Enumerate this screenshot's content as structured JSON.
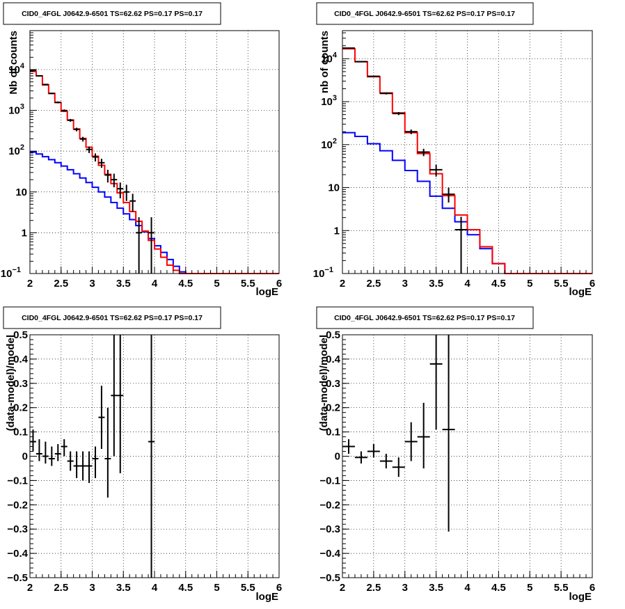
{
  "colors": {
    "data": "#000000",
    "total_model": "#ff0000",
    "source_model": "#0000ff",
    "grid": "#000000",
    "background": "#ffffff"
  },
  "chart_data": [
    {
      "type": "line",
      "title": "CID0_4FGL J0642.9-6501 TS=62.62 PS=0.17 PS=0.17",
      "xlabel": "logE",
      "ylabel": "Nb of counts",
      "log_y": true,
      "grid": true,
      "xlim": [
        2,
        6
      ],
      "ylim": [
        0.1,
        90000
      ],
      "xticks": [
        "2",
        "2.5",
        "3",
        "3.5",
        "4",
        "4.5",
        "5",
        "5.5",
        "6"
      ],
      "yticks": [
        {
          "v": 0.1,
          "label": "10",
          "exp": "−1"
        },
        {
          "v": 1,
          "label": "1",
          "exp": ""
        },
        {
          "v": 10,
          "label": "10",
          "exp": ""
        },
        {
          "v": 100,
          "label": "10",
          "exp": "2"
        },
        {
          "v": 1000,
          "label": "10",
          "exp": "3"
        },
        {
          "v": 10000,
          "label": "10",
          "exp": "4"
        }
      ],
      "bin_edges": [
        2.0,
        2.1,
        2.2,
        2.3,
        2.4,
        2.5,
        2.6,
        2.7,
        2.8,
        2.9,
        3.0,
        3.1,
        3.2,
        3.3,
        3.4,
        3.5,
        3.6,
        3.7,
        3.8,
        3.9,
        4.0,
        4.1,
        4.2,
        4.3,
        4.4,
        4.5,
        4.6,
        4.7,
        4.8,
        4.9,
        5.0,
        5.1,
        5.2,
        5.3,
        5.4,
        5.5,
        5.6,
        5.7,
        5.8,
        5.9,
        6.0
      ],
      "series": [
        {
          "role": "total_model",
          "style": "step",
          "values": [
            9000,
            7000,
            4200,
            2600,
            1550,
            950,
            580,
            350,
            205,
            125,
            75,
            45,
            27,
            16,
            9.5,
            5.5,
            3.3,
            1.9,
            1.1,
            0.65,
            0.4,
            0.25,
            0.16,
            0.12,
            0.1,
            0.1,
            0.1,
            0.1,
            0.1,
            0.1,
            0.1,
            0.1,
            0.1,
            0.1,
            0.1,
            0.1,
            0.1,
            0.1,
            0.1,
            0.1
          ]
        },
        {
          "role": "source_model",
          "style": "step",
          "values": [
            95,
            85,
            73,
            62,
            52,
            43,
            35,
            28,
            22,
            17,
            13,
            10,
            7.5,
            5.5,
            4,
            2.9,
            2.1,
            1.5,
            1.05,
            0.72,
            0.48,
            0.33,
            0.22,
            0.15,
            0.11,
            0.1,
            0.1,
            0.1,
            0.1,
            0.1,
            0.1,
            0.1,
            0.1,
            0.1,
            0.1,
            0.1,
            0.1,
            0.1,
            0.1,
            0.1
          ]
        },
        {
          "role": "data",
          "style": "errorbar",
          "points": [
            {
              "x": 2.05,
              "y": 9500,
              "ylo": 9300,
              "yhi": 9700
            },
            {
              "x": 2.15,
              "y": 7000,
              "ylo": 6830,
              "yhi": 7170
            },
            {
              "x": 2.25,
              "y": 4300,
              "ylo": 4170,
              "yhi": 4430
            },
            {
              "x": 2.35,
              "y": 2600,
              "ylo": 2500,
              "yhi": 2700
            },
            {
              "x": 2.45,
              "y": 1570,
              "ylo": 1490,
              "yhi": 1650
            },
            {
              "x": 2.55,
              "y": 990,
              "ylo": 930,
              "yhi": 1050
            },
            {
              "x": 2.65,
              "y": 570,
              "ylo": 525,
              "yhi": 615
            },
            {
              "x": 2.75,
              "y": 340,
              "ylo": 305,
              "yhi": 375
            },
            {
              "x": 2.85,
              "y": 198,
              "ylo": 172,
              "yhi": 224
            },
            {
              "x": 2.95,
              "y": 110,
              "ylo": 90,
              "yhi": 130
            },
            {
              "x": 3.05,
              "y": 72,
              "ylo": 56,
              "yhi": 88
            },
            {
              "x": 3.15,
              "y": 52,
              "ylo": 39,
              "yhi": 65
            },
            {
              "x": 3.25,
              "y": 26,
              "ylo": 17,
              "yhi": 35
            },
            {
              "x": 3.35,
              "y": 20,
              "ylo": 13,
              "yhi": 28
            },
            {
              "x": 3.45,
              "y": 12,
              "ylo": 7,
              "yhi": 17
            },
            {
              "x": 3.55,
              "y": 10,
              "ylo": 6,
              "yhi": 15
            },
            {
              "x": 3.65,
              "y": 6,
              "ylo": 3.3,
              "yhi": 9
            },
            {
              "x": 3.75,
              "y": 1,
              "ylo": 0.1,
              "yhi": 2.4
            },
            {
              "x": 3.95,
              "y": 1,
              "ylo": 0.1,
              "yhi": 2.4
            }
          ]
        }
      ]
    },
    {
      "type": "line",
      "title": "CID0_4FGL J0642.9-6501 TS=62.62 PS=0.17 PS=0.17",
      "xlabel": "logE",
      "ylabel": "nb of counts",
      "log_y": true,
      "grid": true,
      "xlim": [
        2,
        6
      ],
      "ylim": [
        0.1,
        45000
      ],
      "xticks": [
        "2",
        "2.5",
        "3",
        "3.5",
        "4",
        "4.5",
        "5",
        "5.5",
        "6"
      ],
      "yticks": [
        {
          "v": 0.1,
          "label": "10",
          "exp": "−1"
        },
        {
          "v": 1,
          "label": "1",
          "exp": ""
        },
        {
          "v": 10,
          "label": "10",
          "exp": ""
        },
        {
          "v": 100,
          "label": "10",
          "exp": "2"
        },
        {
          "v": 1000,
          "label": "10",
          "exp": "3"
        },
        {
          "v": 10000,
          "label": "10",
          "exp": "4"
        }
      ],
      "bin_edges": [
        2.0,
        2.2,
        2.4,
        2.6,
        2.8,
        3.0,
        3.2,
        3.4,
        3.6,
        3.8,
        4.0,
        4.2,
        4.4,
        4.6,
        4.8,
        5.0,
        5.2,
        5.4,
        5.6,
        5.8,
        6.0
      ],
      "series": [
        {
          "role": "total_model",
          "style": "step",
          "values": [
            17000,
            8500,
            3800,
            1600,
            550,
            190,
            62,
            21,
            6.5,
            2.3,
            1.05,
            0.42,
            0.17,
            0.1,
            0.1,
            0.1,
            0.1,
            0.1,
            0.1,
            0.1
          ]
        },
        {
          "role": "source_model",
          "style": "step",
          "values": [
            190,
            155,
            105,
            72,
            43,
            25,
            14,
            6.3,
            3.3,
            1.6,
            0.8,
            0.38,
            0.17,
            0.1,
            0.1,
            0.1,
            0.1,
            0.1,
            0.1,
            0.1
          ]
        },
        {
          "role": "data",
          "style": "errorbar",
          "points": [
            {
              "x": 2.1,
              "y": 17600,
              "ylo": 17300,
              "yhi": 17900
            },
            {
              "x": 2.3,
              "y": 8500,
              "ylo": 8320,
              "yhi": 8680
            },
            {
              "x": 2.5,
              "y": 3900,
              "ylo": 3780,
              "yhi": 4020
            },
            {
              "x": 2.7,
              "y": 1550,
              "ylo": 1470,
              "yhi": 1630
            },
            {
              "x": 2.9,
              "y": 530,
              "ylo": 487,
              "yhi": 573
            },
            {
              "x": 3.1,
              "y": 200,
              "ylo": 175,
              "yhi": 225
            },
            {
              "x": 3.3,
              "y": 67,
              "ylo": 54,
              "yhi": 80
            },
            {
              "x": 3.5,
              "y": 26,
              "ylo": 18,
              "yhi": 34
            },
            {
              "x": 3.7,
              "y": 7,
              "ylo": 4.5,
              "yhi": 10
            },
            {
              "x": 3.9,
              "y": 1.05,
              "ylo": 0.1,
              "yhi": 2.1
            }
          ]
        }
      ]
    },
    {
      "type": "scatter",
      "title": "CID0_4FGL J0642.9-6501 TS=62.62 PS=0.17 PS=0.17",
      "xlabel": "logE",
      "ylabel": "(data-model)/model",
      "grid": true,
      "xlim": [
        2,
        6
      ],
      "ylim": [
        -0.5,
        0.5
      ],
      "xticks": [
        "2",
        "2.5",
        "3",
        "3.5",
        "4",
        "4.5",
        "5",
        "5.5",
        "6"
      ],
      "yticks": [
        "−0.5",
        "−0.4",
        "−0.3",
        "−0.2",
        "−0.1",
        "0",
        "0.1",
        "0.2",
        "0.3",
        "0.4",
        "0.5"
      ],
      "xerr": 0.05,
      "points": [
        {
          "x": 2.05,
          "y": 0.06,
          "ylo": 0.02,
          "yhi": 0.11
        },
        {
          "x": 2.15,
          "y": 0.01,
          "ylo": -0.02,
          "yhi": 0.07
        },
        {
          "x": 2.25,
          "y": 0.0,
          "ylo": -0.03,
          "yhi": 0.06
        },
        {
          "x": 2.35,
          "y": -0.01,
          "ylo": -0.04,
          "yhi": 0.04
        },
        {
          "x": 2.45,
          "y": 0.01,
          "ylo": -0.02,
          "yhi": 0.05
        },
        {
          "x": 2.55,
          "y": 0.04,
          "ylo": 0.0,
          "yhi": 0.07
        },
        {
          "x": 2.65,
          "y": -0.02,
          "ylo": -0.06,
          "yhi": 0.02
        },
        {
          "x": 2.75,
          "y": -0.04,
          "ylo": -0.09,
          "yhi": 0.02
        },
        {
          "x": 2.85,
          "y": -0.04,
          "ylo": -0.1,
          "yhi": 0.02
        },
        {
          "x": 2.95,
          "y": -0.04,
          "ylo": -0.11,
          "yhi": 0.02
        },
        {
          "x": 3.05,
          "y": -0.01,
          "ylo": -0.09,
          "yhi": 0.04
        },
        {
          "x": 3.15,
          "y": 0.16,
          "ylo": 0.03,
          "yhi": 0.29
        },
        {
          "x": 3.25,
          "y": -0.01,
          "ylo": -0.17,
          "yhi": 0.2
        },
        {
          "x": 3.35,
          "y": 0.25,
          "ylo": 0.0,
          "yhi": 0.5
        },
        {
          "x": 3.45,
          "y": 0.25,
          "ylo": -0.07,
          "yhi": 0.5
        },
        {
          "x": 3.95,
          "y": 0.06,
          "ylo": -0.5,
          "yhi": 0.5
        }
      ]
    },
    {
      "type": "scatter",
      "title": "CID0_4FGL J0642.9-6501 TS=62.62 PS=0.17 PS=0.17",
      "xlabel": "logE",
      "ylabel": "(data-model)/model",
      "grid": true,
      "xlim": [
        2,
        6
      ],
      "ylim": [
        -0.5,
        0.5
      ],
      "xticks": [
        "2",
        "2.5",
        "3",
        "3.5",
        "4",
        "4.5",
        "5",
        "5.5",
        "6"
      ],
      "yticks": [
        "−0.5",
        "−0.4",
        "−0.3",
        "−0.2",
        "−0.1",
        "0",
        "0.1",
        "0.2",
        "0.3",
        "0.4",
        "0.5"
      ],
      "xerr": 0.1,
      "points": [
        {
          "x": 2.1,
          "y": 0.04,
          "ylo": 0.01,
          "yhi": 0.07
        },
        {
          "x": 2.3,
          "y": -0.005,
          "ylo": -0.03,
          "yhi": 0.02
        },
        {
          "x": 2.5,
          "y": 0.02,
          "ylo": -0.005,
          "yhi": 0.05
        },
        {
          "x": 2.7,
          "y": -0.02,
          "ylo": -0.05,
          "yhi": 0.01
        },
        {
          "x": 2.9,
          "y": -0.045,
          "ylo": -0.085,
          "yhi": -0.005
        },
        {
          "x": 3.1,
          "y": 0.06,
          "ylo": -0.02,
          "yhi": 0.14
        },
        {
          "x": 3.3,
          "y": 0.08,
          "ylo": -0.05,
          "yhi": 0.22
        },
        {
          "x": 3.5,
          "y": 0.38,
          "ylo": 0.11,
          "yhi": 0.5
        },
        {
          "x": 3.7,
          "y": 0.11,
          "ylo": -0.31,
          "yhi": 0.5
        }
      ]
    }
  ]
}
